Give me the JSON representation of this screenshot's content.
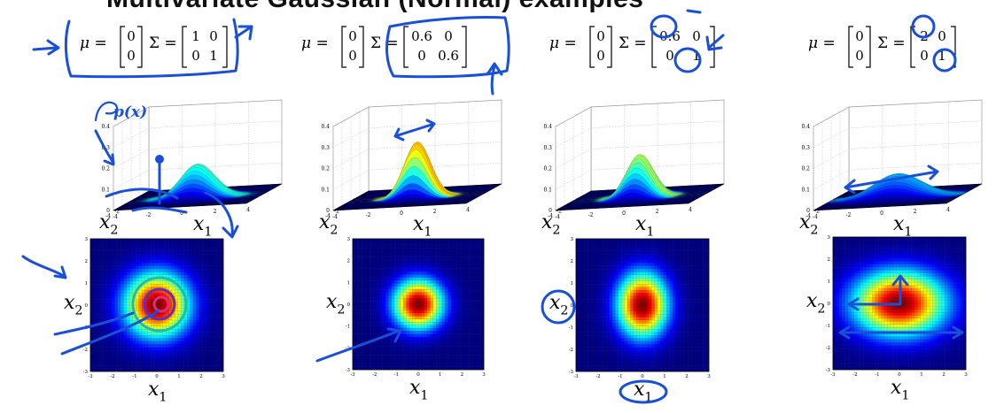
{
  "title": "Multivariate Gaussian (Normal) examples",
  "annotation_color": "#1a4fd8",
  "panels": [
    {
      "mu": [
        "0",
        "0"
      ],
      "sigma": [
        [
          "1",
          "0"
        ],
        [
          "0",
          "1"
        ]
      ],
      "variance": [
        1.0,
        1.0
      ],
      "surface_label": "p(x)"
    },
    {
      "mu": [
        "0",
        "0"
      ],
      "sigma": [
        [
          "0.6",
          "0"
        ],
        [
          "0",
          "0.6"
        ]
      ],
      "variance": [
        0.6,
        0.6
      ]
    },
    {
      "mu": [
        "0",
        "0"
      ],
      "sigma": [
        [
          "0.6",
          "0"
        ],
        [
          "0",
          "1"
        ]
      ],
      "variance": [
        0.6,
        1.0
      ]
    },
    {
      "mu": [
        "0",
        "0"
      ],
      "sigma": [
        [
          "2",
          "0"
        ],
        [
          "0",
          "1"
        ]
      ],
      "variance": [
        2.0,
        1.0
      ]
    }
  ],
  "labels": {
    "mu": "μ =",
    "sigma": "Σ =",
    "x1": "x",
    "x1_sub": "1",
    "x2": "x",
    "x2_sub": "2"
  },
  "surface_ticks": {
    "z": [
      "0.4",
      "0.3",
      "0.2",
      "0.1",
      "0"
    ],
    "xy": [
      "4",
      "2",
      "0",
      "-2",
      "-4"
    ]
  },
  "heatmap_ticks": {
    "values": [
      "-3",
      "-2",
      "-1",
      "0",
      "1",
      "2",
      "3"
    ]
  }
}
